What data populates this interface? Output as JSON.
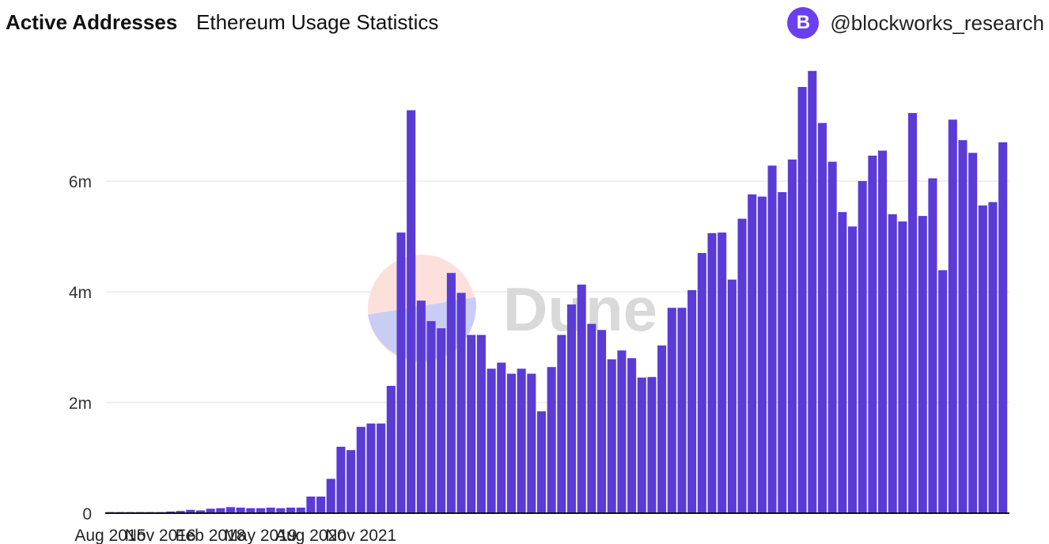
{
  "header": {
    "title": "Active Addresses",
    "subtitle": "Ethereum Usage Statistics",
    "handle": "@blockworks_research",
    "logo_letter": "B"
  },
  "watermark": "Dune",
  "colors": {
    "bar": "#5b3bd6",
    "brand": "#6a3ff0",
    "grid": "#ececec",
    "axis": "#111111"
  },
  "chart_data": {
    "type": "bar",
    "title": "Active Addresses",
    "subtitle": "Ethereum Usage Statistics",
    "x_ticks": [
      "Aug 2015",
      "Nov 2016",
      "Feb 2018",
      "May 2019",
      "Aug 2020",
      "Nov 2021"
    ],
    "y_ticks": [
      "0",
      "2m",
      "4m",
      "6m"
    ],
    "y_tick_values": [
      0,
      2000000,
      4000000,
      6000000
    ],
    "ylim": [
      0,
      8000000
    ],
    "grid": true,
    "period": "quarterly periods starting Aug 2015",
    "series": [
      {
        "values": [
          0.02,
          0.02,
          0.02,
          0.02,
          0.02,
          0.02,
          0.03,
          0.04,
          0.06,
          0.05,
          0.08,
          0.09,
          0.11,
          0.1,
          0.09,
          0.09,
          0.1,
          0.09,
          0.1,
          0.1,
          0.3,
          0.3,
          0.62,
          1.2,
          1.14,
          1.56,
          1.62,
          1.62,
          2.3,
          5.07,
          7.28,
          3.84,
          3.47,
          3.34,
          4.34,
          3.98,
          3.22,
          3.22,
          2.61,
          2.72,
          2.52,
          2.61,
          2.52,
          1.84,
          2.64,
          3.22,
          3.77,
          4.13,
          3.42,
          3.31,
          2.78,
          2.94,
          2.8,
          2.45,
          2.46,
          3.03,
          3.71,
          3.71,
          4.03,
          4.7,
          5.06,
          5.07,
          4.22,
          5.32,
          5.76,
          5.72,
          6.28,
          5.8,
          6.39,
          7.7,
          7.99,
          7.05,
          6.35,
          5.44,
          5.18,
          6.0,
          6.46,
          6.55,
          5.4,
          5.27,
          7.23,
          5.37,
          6.05,
          4.39,
          7.11,
          6.74,
          6.51,
          5.56,
          5.62,
          6.7
        ],
        "unit": "millions"
      }
    ]
  }
}
